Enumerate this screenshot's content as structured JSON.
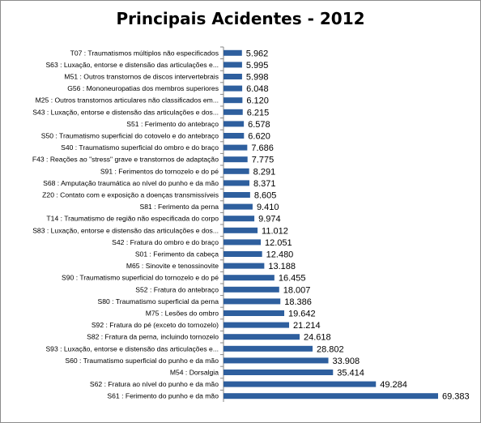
{
  "chart_data": {
    "type": "bar",
    "orientation": "horizontal",
    "title": "Principais Acidentes - 2012",
    "xlabel": "",
    "ylabel": "",
    "grid": false,
    "legend": "none",
    "bar_color": "#2e5f9e",
    "categories": [
      "T07 : Traumatismos múltiplos não especificados",
      "S63 : Luxação, entorse e distensão das articulações e...",
      "M51 : Outros transtornos de discos intervertebrais",
      "G56 : Mononeuropatias dos membros superiores",
      "M25 : Outros transtornos articulares não classificados em...",
      "S43 : Luxação, entorse e distensão das articulações e dos...",
      "S51 : Ferimento do antebraço",
      "S50 : Traumatismo superficial do cotovelo e do antebraço",
      "S40 : Traumatismo superficial do ombro e do braço",
      "F43 : Reações ao \"stress\" grave e transtornos de adaptação",
      "S91 : Ferimentos do tornozelo e do pé",
      "S68 : Amputação traumática ao nível do punho e da mão",
      "Z20 : Contato com e exposição a doenças transmissíveis",
      "S81 : Ferimento da perna",
      "T14 : Traumatismo de região não especificada do corpo",
      "S83 : Luxação, entorse e distensão das articulações e dos...",
      "S42 : Fratura do ombro e do braço",
      "S01 : Ferimento da cabeça",
      "M65 : Sinovite e tenossinovite",
      "S90 : Traumatismo superficial do tornozelo e do pé",
      "S52 : Fratura do antebraço",
      "S80 : Traumatismo superficial da perna",
      "M75 : Lesões do ombro",
      "S92 : Fratura do pé (exceto do tornozelo)",
      "S82 : Fratura da perna, incluindo tornozelo",
      "S93 : Luxação, entorse e distensão das articulações e...",
      "S60 : Traumatismo superficial do punho e da mão",
      "M54 : Dorsalgia",
      "S62 : Fratura ao nível do punho e da mão",
      "S61 : Ferimento do punho e da mão"
    ],
    "values": [
      5962,
      5995,
      5998,
      6048,
      6120,
      6215,
      6578,
      6620,
      7686,
      7775,
      8291,
      8371,
      8605,
      9410,
      9974,
      11012,
      12051,
      12480,
      13188,
      16455,
      18007,
      18386,
      19642,
      21214,
      24618,
      28802,
      33908,
      35414,
      49284,
      69383
    ],
    "value_labels": [
      "5.962",
      "5.995",
      "5.998",
      "6.048",
      "6.120",
      "6.215",
      "6.578",
      "6.620",
      "7.686",
      "7.775",
      "8.291",
      "8.371",
      "8.605",
      "9.410",
      "9.974",
      "11.012",
      "12.051",
      "12.480",
      "13.188",
      "16.455",
      "18.007",
      "18.386",
      "19.642",
      "21.214",
      "24.618",
      "28.802",
      "33.908",
      "35.414",
      "49.284",
      "69.383"
    ]
  }
}
